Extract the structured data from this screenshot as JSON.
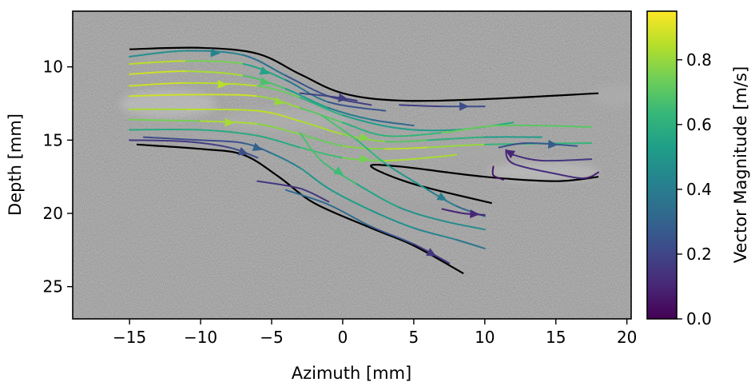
{
  "chart_data": {
    "type": "streamline",
    "xlabel": "Azimuth [mm]",
    "ylabel": "Depth [mm]",
    "xlim": [
      -19,
      20.3
    ],
    "ylim": [
      27.2,
      6.2
    ],
    "xticks": [
      -15,
      -10,
      -5,
      0,
      5,
      10,
      15,
      20
    ],
    "xtick_labels": [
      "−15",
      "−10",
      "−5",
      "0",
      "5",
      "10",
      "15",
      "20"
    ],
    "yticks": [
      10,
      15,
      20,
      25
    ],
    "ytick_labels": [
      "10",
      "15",
      "20",
      "25"
    ],
    "background": "grayscale B-mode ultrasound image",
    "vessel_walls": [
      {
        "name": "upper wall",
        "points": [
          [
            -15,
            8.8
          ],
          [
            -10,
            8.7
          ],
          [
            -6,
            9.1
          ],
          [
            -3,
            10.5
          ],
          [
            0,
            11.8
          ],
          [
            4,
            12.3
          ],
          [
            10,
            12.2
          ],
          [
            18,
            11.8
          ]
        ]
      },
      {
        "name": "lower wall",
        "points": [
          [
            -14.5,
            15.3
          ],
          [
            -10,
            15.6
          ],
          [
            -7,
            16.0
          ],
          [
            -4.5,
            17.5
          ],
          [
            -2,
            19.3
          ],
          [
            2,
            21.0
          ],
          [
            5,
            22.2
          ],
          [
            8.5,
            24.1
          ]
        ]
      },
      {
        "name": "branch divider",
        "points": [
          [
            10.5,
            19.3
          ],
          [
            5,
            18.0
          ],
          [
            2,
            16.8
          ],
          [
            4,
            16.8
          ],
          [
            10,
            17.5
          ],
          [
            15,
            17.8
          ],
          [
            18,
            17.5
          ]
        ]
      }
    ],
    "streamlines": [
      {
        "points": [
          [
            -15,
            9.3
          ],
          [
            -11,
            8.9
          ],
          [
            -7,
            9.2
          ],
          [
            -4,
            10.6
          ],
          [
            -1,
            12.0
          ],
          [
            2,
            12.6
          ]
        ],
        "speeds": [
          0.5,
          0.45,
          0.4,
          0.3,
          0.2,
          0.15
        ],
        "arrow": 1
      },
      {
        "points": [
          [
            -15,
            9.8
          ],
          [
            -11,
            9.6
          ],
          [
            -7,
            9.8
          ],
          [
            -4,
            10.9
          ],
          [
            -1,
            12.4
          ],
          [
            3,
            13.0
          ]
        ],
        "speeds": [
          0.85,
          0.85,
          0.65,
          0.45,
          0.3,
          0.2
        ],
        "arrow": 2
      },
      {
        "points": [
          [
            -15,
            10.5
          ],
          [
            -11,
            10.3
          ],
          [
            -7,
            10.6
          ],
          [
            -4,
            11.5
          ],
          [
            -1,
            12.8
          ],
          [
            2,
            13.6
          ],
          [
            5,
            14.0
          ]
        ],
        "speeds": [
          0.85,
          0.9,
          0.75,
          0.6,
          0.45,
          0.35,
          0.3
        ],
        "arrow": 2
      },
      {
        "points": [
          [
            -15,
            11.3
          ],
          [
            -11,
            11.1
          ],
          [
            -6,
            11.3
          ],
          [
            -3,
            12.1
          ],
          [
            0,
            13.3
          ],
          [
            4,
            14.2
          ],
          [
            8,
            14.3
          ],
          [
            12,
            13.8
          ]
        ],
        "speeds": [
          0.85,
          0.9,
          0.8,
          0.65,
          0.55,
          0.5,
          0.55,
          0.6
        ],
        "arrow": 1
      },
      {
        "points": [
          [
            -15,
            12.0
          ],
          [
            -11,
            11.9
          ],
          [
            -6,
            12.0
          ],
          [
            -3,
            12.8
          ],
          [
            0,
            13.8
          ],
          [
            3,
            14.7
          ],
          [
            7,
            14.5
          ],
          [
            11,
            14.0
          ],
          [
            17.5,
            14.1
          ]
        ],
        "speeds": [
          0.85,
          0.9,
          0.85,
          0.75,
          0.65,
          0.55,
          0.7,
          0.75,
          0.65
        ],
        "arrow": 2
      },
      {
        "points": [
          [
            -15,
            12.9
          ],
          [
            -11,
            12.9
          ],
          [
            -6,
            13.0
          ],
          [
            -3,
            13.7
          ],
          [
            0,
            14.6
          ],
          [
            3,
            15.1
          ],
          [
            6,
            15.0
          ],
          [
            10,
            14.8
          ],
          [
            14,
            14.8
          ]
        ],
        "speeds": [
          0.8,
          0.85,
          0.85,
          0.85,
          0.8,
          0.75,
          0.65,
          0.55,
          0.5
        ],
        "arrow": 4
      },
      {
        "points": [
          [
            -15,
            13.6
          ],
          [
            -10,
            13.7
          ],
          [
            -6,
            13.9
          ],
          [
            -3,
            14.6
          ],
          [
            0,
            15.4
          ],
          [
            3,
            15.6
          ],
          [
            6,
            15.5
          ],
          [
            10,
            15.3
          ],
          [
            17.5,
            15.2
          ]
        ],
        "speeds": [
          0.65,
          0.85,
          0.8,
          0.75,
          0.7,
          0.85,
          0.85,
          0.75,
          0.5
        ],
        "arrow": 1
      },
      {
        "points": [
          [
            -15,
            14.3
          ],
          [
            -10,
            14.3
          ],
          [
            -6,
            14.7
          ],
          [
            -3,
            15.5
          ],
          [
            0,
            16.2
          ],
          [
            3,
            16.4
          ],
          [
            6,
            16.2
          ],
          [
            8,
            16.0
          ]
        ],
        "speeds": [
          0.55,
          0.6,
          0.55,
          0.6,
          0.7,
          0.8,
          0.85,
          0.8
        ],
        "arrow": 4
      },
      {
        "points": [
          [
            -14,
            14.8
          ],
          [
            -10,
            15.0
          ],
          [
            -7,
            15.2
          ],
          [
            -5,
            15.9
          ],
          [
            -3,
            16.9
          ],
          [
            -1,
            18.3
          ],
          [
            2,
            19.8
          ],
          [
            5,
            21.0
          ],
          [
            8,
            21.8
          ],
          [
            10,
            22.4
          ]
        ],
        "speeds": [
          0.25,
          0.2,
          0.25,
          0.35,
          0.45,
          0.55,
          0.5,
          0.45,
          0.4,
          0.35
        ],
        "arrow": 2
      },
      {
        "points": [
          [
            -15,
            15.0
          ],
          [
            -11,
            15.1
          ],
          [
            -8,
            15.5
          ],
          [
            -6,
            16.2
          ]
        ],
        "speeds": [
          0.15,
          0.15,
          0.2,
          0.25
        ],
        "arrow": 2
      },
      {
        "points": [
          [
            -3,
            14.5
          ],
          [
            -1.5,
            16.4
          ],
          [
            1,
            18.0
          ],
          [
            4,
            19.6
          ],
          [
            7,
            20.5
          ],
          [
            10,
            21.1
          ]
        ],
        "speeds": [
          0.65,
          0.7,
          0.6,
          0.5,
          0.45,
          0.45
        ],
        "arrow": 1
      },
      {
        "points": [
          [
            -1.5,
            13.3
          ],
          [
            1,
            15.0
          ],
          [
            3,
            16.6
          ],
          [
            6,
            18.4
          ],
          [
            8,
            19.5
          ],
          [
            10,
            20.2
          ]
        ],
        "speeds": [
          0.65,
          0.7,
          0.55,
          0.45,
          0.35,
          0.3
        ],
        "arrow": 3
      },
      {
        "points": [
          [
            -3,
            11.8
          ],
          [
            -1,
            12.0
          ],
          [
            1,
            12.3
          ]
        ],
        "speeds": [
          0.2,
          0.2,
          0.15
        ],
        "arrow": 1
      },
      {
        "points": [
          [
            4,
            12.6
          ],
          [
            7,
            12.7
          ],
          [
            10,
            12.7
          ]
        ],
        "speeds": [
          0.15,
          0.2,
          0.25
        ],
        "arrow": 1
      },
      {
        "points": [
          [
            -6,
            17.8
          ],
          [
            -3,
            18.3
          ],
          [
            -1,
            19.2
          ]
        ],
        "speeds": [
          0.15,
          0.15,
          0.15
        ],
        "arrow": 2
      },
      {
        "points": [
          [
            -4,
            18.4
          ],
          [
            -1,
            19.4
          ],
          [
            2,
            20.9
          ],
          [
            5,
            22.1
          ],
          [
            7.5,
            23.4
          ]
        ],
        "speeds": [
          0.3,
          0.35,
          0.3,
          0.2,
          0.1
        ],
        "arrow": 3
      },
      {
        "points": [
          [
            11,
            15.5
          ],
          [
            13,
            15.2
          ],
          [
            16.5,
            15.4
          ]
        ],
        "speeds": [
          0.2,
          0.25,
          0.3
        ],
        "arrow": 1
      },
      {
        "points": [
          [
            17.5,
            16.3
          ],
          [
            14,
            16.4
          ],
          [
            12,
            16.0
          ],
          [
            11.5,
            15.7
          ],
          [
            12,
            16.6
          ],
          [
            15,
            17.3
          ],
          [
            17,
            17.6
          ],
          [
            18,
            17.2
          ]
        ],
        "speeds": [
          0.15,
          0.15,
          0.1,
          0.1,
          0.1,
          0.15,
          0.1,
          0.05
        ],
        "arrow": 2
      },
      {
        "points": [
          [
            7,
            19.7
          ],
          [
            8.5,
            20.0
          ],
          [
            10,
            20.1
          ]
        ],
        "speeds": [
          0.1,
          0.1,
          0.1
        ],
        "arrow": 1
      },
      {
        "points": [
          [
            10.6,
            16.8
          ],
          [
            10.6,
            17.4
          ],
          [
            11.3,
            17.7
          ]
        ],
        "speeds": [
          0.05,
          0.05,
          0.05
        ],
        "arrow": -1
      }
    ],
    "colorbar": {
      "label": "Vector Magnitude [m/s]",
      "colormap": "viridis",
      "range": [
        0.0,
        0.95
      ],
      "ticks": [
        0.0,
        0.2,
        0.4,
        0.6,
        0.8
      ],
      "tick_labels": [
        "0.0",
        "0.2",
        "0.4",
        "0.6",
        "0.8"
      ]
    },
    "colormap_stops": [
      "#440154",
      "#482878",
      "#3e4989",
      "#31688e",
      "#26828e",
      "#1f9e89",
      "#35b779",
      "#6ece58",
      "#b5de2b",
      "#fde725"
    ]
  }
}
